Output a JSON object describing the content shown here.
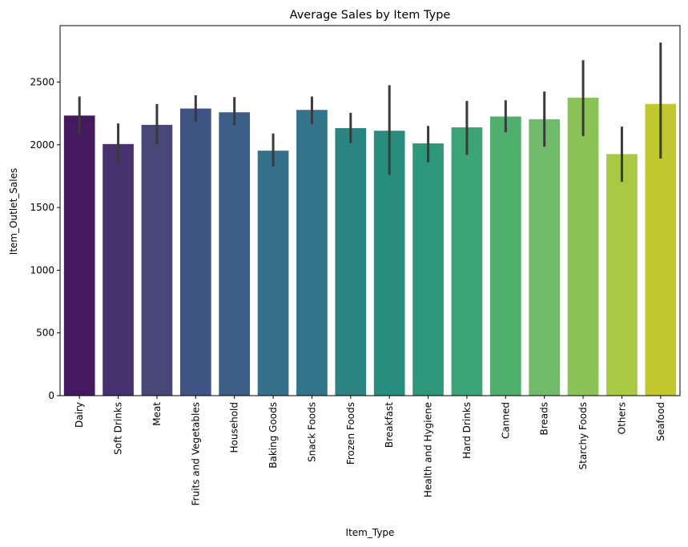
{
  "chart_data": {
    "type": "bar",
    "title": "Average Sales by Item Type",
    "xlabel": "Item_Type",
    "ylabel": "Item_Outlet_Sales",
    "ylim": [
      0,
      2950
    ],
    "yticks": [
      0,
      500,
      1000,
      1500,
      2000,
      2500
    ],
    "grid": false,
    "legend": "none",
    "error_bars": true,
    "categories": [
      "Dairy",
      "Soft Drinks",
      "Meat",
      "Fruits and Vegetables",
      "Household",
      "Baking Goods",
      "Snack Foods",
      "Frozen Foods",
      "Breakfast",
      "Health and Hygiene",
      "Hard Drinks",
      "Canned",
      "Breads",
      "Starchy Foods",
      "Others",
      "Seafood"
    ],
    "values": [
      2233,
      2006,
      2159,
      2289,
      2259,
      1953,
      2278,
      2133,
      2112,
      2011,
      2139,
      2225,
      2204,
      2375,
      1926,
      2326
    ],
    "error_low": [
      2085,
      1855,
      2005,
      2185,
      2155,
      1825,
      2165,
      2015,
      1760,
      1860,
      1920,
      2100,
      1985,
      2070,
      1705,
      1890
    ],
    "error_high": [
      2385,
      2170,
      2325,
      2395,
      2380,
      2090,
      2385,
      2255,
      2475,
      2150,
      2350,
      2355,
      2425,
      2675,
      2145,
      2815
    ],
    "colors": [
      "#44195f",
      "#48316f",
      "#474778",
      "#3e5483",
      "#3c5f88",
      "#35708a",
      "#32758a",
      "#2a8482",
      "#288d7c",
      "#2d977a",
      "#3ba577",
      "#4fb06e",
      "#6fbb69",
      "#8ac356",
      "#a8c942",
      "#c0c82e"
    ],
    "error_color": "#3a3a3a"
  }
}
